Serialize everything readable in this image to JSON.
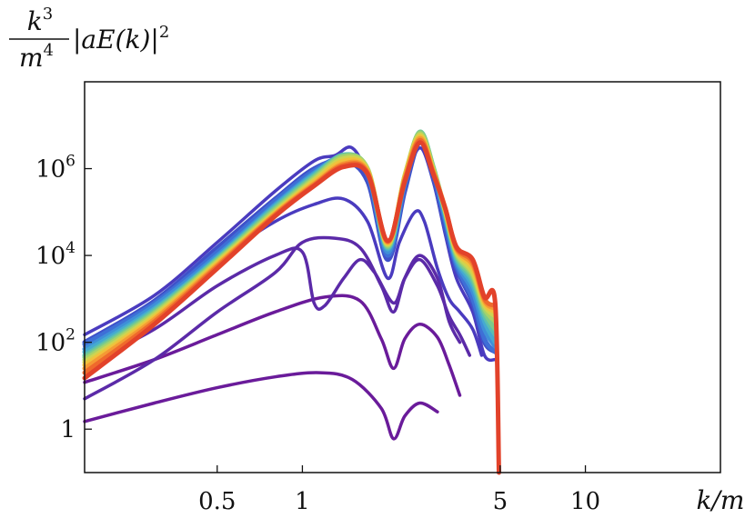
{
  "chart_data": {
    "type": "line",
    "title": "",
    "xlabel": "k/m",
    "ylabel": {
      "numerator": "k",
      "numerator_exp": "3",
      "denominator": "m",
      "denominator_exp": "4",
      "factor": "|aE(k)|",
      "factor_exp": "2"
    },
    "xscale": "log",
    "yscale": "log",
    "xlim": [
      0.17,
      30
    ],
    "ylim": [
      0.1,
      100000000
    ],
    "grid": false,
    "legend": "none",
    "x_ticks": [
      {
        "value": 0.5,
        "label": "0.5"
      },
      {
        "value": 1,
        "label": "1"
      },
      {
        "value": 5,
        "label": "5"
      },
      {
        "value": 10,
        "label": "10"
      }
    ],
    "y_ticks": [
      {
        "value": 1,
        "base": "1",
        "exp": ""
      },
      {
        "value": 100,
        "base": "10",
        "exp": "2"
      },
      {
        "value": 10000,
        "base": "10",
        "exp": "4"
      },
      {
        "value": 1000000,
        "base": "10",
        "exp": "6"
      }
    ],
    "colormap": "rainbow (purple → blue → green → yellow → red)",
    "series_colors": [
      "#6a1b9a",
      "#5b2aa8",
      "#4a3bbf",
      "#3f51c9",
      "#3e6fd6",
      "#3f8fd8",
      "#45aad0",
      "#5bbfb0",
      "#7ccb8a",
      "#a6d36a",
      "#cfd450",
      "#f0c23c",
      "#f59a34",
      "#ef6a2c",
      "#e2422a"
    ],
    "series": [
      {
        "color": "#6a1b9a",
        "values": [
          [
            0.17,
            1.5
          ],
          [
            0.3,
            4
          ],
          [
            0.5,
            9
          ],
          [
            0.8,
            16
          ],
          [
            1.15,
            20
          ],
          [
            1.5,
            14
          ],
          [
            1.9,
            3
          ],
          [
            2.1,
            0.6
          ],
          [
            2.3,
            2
          ],
          [
            2.6,
            4
          ],
          [
            3.0,
            2.5
          ]
        ]
      },
      {
        "color": "#6a1b9a",
        "values": [
          [
            0.17,
            12
          ],
          [
            0.3,
            40
          ],
          [
            0.5,
            150
          ],
          [
            0.8,
            500
          ],
          [
            1.2,
            1100
          ],
          [
            1.6,
            900
          ],
          [
            1.9,
            120
          ],
          [
            2.1,
            25
          ],
          [
            2.3,
            120
          ],
          [
            2.6,
            260
          ],
          [
            3.0,
            130
          ],
          [
            3.3,
            30
          ],
          [
            3.6,
            6
          ]
        ]
      },
      {
        "color": "#5b2aa8",
        "values": [
          [
            0.17,
            5
          ],
          [
            0.3,
            40
          ],
          [
            0.5,
            500
          ],
          [
            0.8,
            4000
          ],
          [
            1.0,
            20000
          ],
          [
            1.3,
            25000
          ],
          [
            1.6,
            15000
          ],
          [
            1.9,
            2000
          ],
          [
            2.1,
            500
          ],
          [
            2.3,
            3000
          ],
          [
            2.6,
            10000
          ],
          [
            3.0,
            3000
          ],
          [
            3.3,
            300
          ],
          [
            3.6,
            100
          ]
        ]
      },
      {
        "color": "#5b2aa8",
        "values": [
          [
            0.17,
            30
          ],
          [
            0.3,
            200
          ],
          [
            0.5,
            2000
          ],
          [
            0.8,
            10000
          ],
          [
            1.0,
            12000
          ],
          [
            1.1,
            800
          ],
          [
            1.2,
            700
          ],
          [
            1.4,
            3000
          ],
          [
            1.6,
            8000
          ],
          [
            1.8,
            4000
          ],
          [
            2.1,
            800
          ],
          [
            2.3,
            3000
          ],
          [
            2.6,
            8000
          ],
          [
            3.0,
            2000
          ],
          [
            3.3,
            400
          ],
          [
            3.6,
            150
          ],
          [
            3.9,
            50
          ]
        ]
      },
      {
        "color": "#4a3bbf",
        "values": [
          [
            0.17,
            80
          ],
          [
            0.3,
            600
          ],
          [
            0.5,
            8000
          ],
          [
            0.8,
            60000
          ],
          [
            1.1,
            150000
          ],
          [
            1.4,
            200000
          ],
          [
            1.7,
            60000
          ],
          [
            2.0,
            3000
          ],
          [
            2.2,
            20000
          ],
          [
            2.5,
            100000
          ],
          [
            2.7,
            60000
          ],
          [
            3.0,
            5000
          ],
          [
            3.3,
            1000
          ],
          [
            3.6,
            500
          ],
          [
            4.0,
            200
          ],
          [
            4.3,
            50
          ]
        ]
      },
      {
        "color": "#4a3bbf",
        "values": [
          [
            0.17,
            150
          ],
          [
            0.3,
            1200
          ],
          [
            0.5,
            20000
          ],
          [
            0.8,
            300000
          ],
          [
            1.1,
            1500000
          ],
          [
            1.3,
            2000000
          ],
          [
            1.5,
            3000000
          ],
          [
            1.7,
            600000
          ],
          [
            2.0,
            10000
          ],
          [
            2.3,
            400000
          ],
          [
            2.6,
            3000000
          ],
          [
            2.9,
            500000
          ],
          [
            3.2,
            30000
          ],
          [
            3.5,
            3000
          ],
          [
            4.0,
            500
          ],
          [
            4.4,
            50
          ],
          [
            4.8,
            40
          ]
        ]
      },
      {
        "color": "#3f51c9",
        "values": [
          [
            0.17,
            100
          ],
          [
            0.3,
            900
          ],
          [
            0.5,
            15000
          ],
          [
            0.8,
            200000
          ],
          [
            1.1,
            1000000
          ],
          [
            1.4,
            1500000
          ],
          [
            1.7,
            500000
          ],
          [
            2.0,
            8000
          ],
          [
            2.3,
            300000
          ],
          [
            2.6,
            4000000
          ],
          [
            2.9,
            600000
          ],
          [
            3.2,
            40000
          ],
          [
            3.5,
            5000
          ],
          [
            4.0,
            800
          ],
          [
            4.4,
            100
          ],
          [
            4.8,
            60
          ]
        ]
      },
      {
        "color": "#3e6fd6",
        "values": [
          [
            0.17,
            90
          ],
          [
            0.3,
            800
          ],
          [
            0.5,
            12000
          ],
          [
            0.8,
            180000
          ],
          [
            1.1,
            900000
          ],
          [
            1.4,
            1800000
          ],
          [
            1.7,
            700000
          ],
          [
            2.0,
            10000
          ],
          [
            2.3,
            400000
          ],
          [
            2.6,
            5000000
          ],
          [
            2.9,
            800000
          ],
          [
            3.2,
            60000
          ],
          [
            3.5,
            6000
          ],
          [
            4.0,
            1000
          ],
          [
            4.4,
            120
          ],
          [
            4.8,
            60
          ]
        ]
      },
      {
        "color": "#3f8fd8",
        "values": [
          [
            0.17,
            70
          ],
          [
            0.3,
            700
          ],
          [
            0.5,
            10000
          ],
          [
            0.8,
            150000
          ],
          [
            1.1,
            800000
          ],
          [
            1.4,
            1900000
          ],
          [
            1.7,
            800000
          ],
          [
            2.0,
            12000
          ],
          [
            2.3,
            500000
          ],
          [
            2.6,
            6000000
          ],
          [
            2.9,
            900000
          ],
          [
            3.2,
            70000
          ],
          [
            3.5,
            7000
          ],
          [
            4.0,
            1500
          ],
          [
            4.4,
            200
          ],
          [
            4.8,
            80
          ]
        ]
      },
      {
        "color": "#45aad0",
        "values": [
          [
            0.17,
            60
          ],
          [
            0.3,
            600
          ],
          [
            0.5,
            9000
          ],
          [
            0.8,
            140000
          ],
          [
            1.1,
            750000
          ],
          [
            1.4,
            2000000
          ],
          [
            1.7,
            900000
          ],
          [
            2.0,
            14000
          ],
          [
            2.3,
            550000
          ],
          [
            2.6,
            6500000
          ],
          [
            2.9,
            1000000
          ],
          [
            3.2,
            80000
          ],
          [
            3.5,
            8000
          ],
          [
            4.0,
            2000
          ],
          [
            4.4,
            300
          ],
          [
            4.8,
            100
          ]
        ]
      },
      {
        "color": "#5bbfb0",
        "values": [
          [
            0.17,
            50
          ],
          [
            0.3,
            550
          ],
          [
            0.5,
            8500
          ],
          [
            0.8,
            130000
          ],
          [
            1.1,
            700000
          ],
          [
            1.4,
            2100000
          ],
          [
            1.7,
            950000
          ],
          [
            2.0,
            15000
          ],
          [
            2.3,
            600000
          ],
          [
            2.6,
            7000000
          ],
          [
            2.9,
            1100000
          ],
          [
            3.2,
            90000
          ],
          [
            3.5,
            9000
          ],
          [
            4.0,
            2500
          ],
          [
            4.4,
            400
          ],
          [
            4.8,
            150
          ]
        ]
      },
      {
        "color": "#7ccb8a",
        "values": [
          [
            0.17,
            45
          ],
          [
            0.3,
            500
          ],
          [
            0.5,
            8000
          ],
          [
            0.8,
            120000
          ],
          [
            1.1,
            650000
          ],
          [
            1.4,
            2000000
          ],
          [
            1.7,
            1000000
          ],
          [
            2.0,
            16000
          ],
          [
            2.3,
            650000
          ],
          [
            2.6,
            7000000
          ],
          [
            2.9,
            1100000
          ],
          [
            3.2,
            100000
          ],
          [
            3.5,
            10000
          ],
          [
            4.0,
            3000
          ],
          [
            4.4,
            500
          ],
          [
            4.8,
            200
          ]
        ]
      },
      {
        "color": "#a6d36a",
        "values": [
          [
            0.17,
            40
          ],
          [
            0.3,
            460
          ],
          [
            0.5,
            7500
          ],
          [
            0.8,
            110000
          ],
          [
            1.1,
            600000
          ],
          [
            1.4,
            1900000
          ],
          [
            1.7,
            1000000
          ],
          [
            2.0,
            17000
          ],
          [
            2.3,
            700000
          ],
          [
            2.6,
            6500000
          ],
          [
            2.9,
            1000000
          ],
          [
            3.2,
            100000
          ],
          [
            3.5,
            11000
          ],
          [
            4.0,
            3500
          ],
          [
            4.4,
            600
          ],
          [
            4.8,
            300
          ]
        ]
      },
      {
        "color": "#cfd450",
        "values": [
          [
            0.17,
            35
          ],
          [
            0.3,
            420
          ],
          [
            0.5,
            7000
          ],
          [
            0.8,
            100000
          ],
          [
            1.1,
            550000
          ],
          [
            1.4,
            1700000
          ],
          [
            1.7,
            950000
          ],
          [
            2.0,
            18000
          ],
          [
            2.3,
            700000
          ],
          [
            2.6,
            6000000
          ],
          [
            2.9,
            950000
          ],
          [
            3.2,
            100000
          ],
          [
            3.5,
            12000
          ],
          [
            4.0,
            4000
          ],
          [
            4.4,
            700
          ],
          [
            4.8,
            400
          ]
        ]
      },
      {
        "color": "#f0c23c",
        "values": [
          [
            0.17,
            30
          ],
          [
            0.3,
            380
          ],
          [
            0.5,
            6500
          ],
          [
            0.8,
            95000
          ],
          [
            1.1,
            500000
          ],
          [
            1.4,
            1500000
          ],
          [
            1.7,
            900000
          ],
          [
            2.0,
            19000
          ],
          [
            2.3,
            650000
          ],
          [
            2.6,
            5500000
          ],
          [
            2.9,
            900000
          ],
          [
            3.2,
            110000
          ],
          [
            3.5,
            13000
          ],
          [
            4.0,
            5000
          ],
          [
            4.4,
            800
          ],
          [
            4.8,
            500
          ]
        ]
      },
      {
        "color": "#f59a34",
        "values": [
          [
            0.17,
            25
          ],
          [
            0.3,
            340
          ],
          [
            0.5,
            6000
          ],
          [
            0.8,
            90000
          ],
          [
            1.1,
            450000
          ],
          [
            1.4,
            1300000
          ],
          [
            1.7,
            850000
          ],
          [
            2.0,
            20000
          ],
          [
            2.3,
            600000
          ],
          [
            2.6,
            5000000
          ],
          [
            2.9,
            850000
          ],
          [
            3.2,
            120000
          ],
          [
            3.5,
            14000
          ],
          [
            4.0,
            6000
          ],
          [
            4.4,
            900
          ],
          [
            4.8,
            600
          ]
        ]
      },
      {
        "color": "#ef6a2c",
        "values": [
          [
            0.17,
            20
          ],
          [
            0.3,
            300
          ],
          [
            0.5,
            5500
          ],
          [
            0.8,
            85000
          ],
          [
            1.1,
            420000
          ],
          [
            1.4,
            1200000
          ],
          [
            1.7,
            800000
          ],
          [
            2.0,
            21000
          ],
          [
            2.3,
            550000
          ],
          [
            2.6,
            4500000
          ],
          [
            2.9,
            800000
          ],
          [
            3.2,
            120000
          ],
          [
            3.5,
            15000
          ],
          [
            4.0,
            7000
          ],
          [
            4.4,
            1000
          ],
          [
            4.8,
            700
          ]
        ]
      },
      {
        "color": "#e2422a",
        "values": [
          [
            0.17,
            15
          ],
          [
            0.3,
            260
          ],
          [
            0.5,
            5000
          ],
          [
            0.8,
            80000
          ],
          [
            1.1,
            400000
          ],
          [
            1.4,
            1100000
          ],
          [
            1.7,
            750000
          ],
          [
            2.0,
            22000
          ],
          [
            2.3,
            500000
          ],
          [
            2.6,
            4000000
          ],
          [
            2.9,
            750000
          ],
          [
            3.2,
            120000
          ],
          [
            3.5,
            16000
          ],
          [
            4.0,
            8000
          ],
          [
            4.4,
            1100
          ],
          [
            4.8,
            800
          ],
          [
            4.95,
            0.1
          ]
        ]
      }
    ]
  }
}
